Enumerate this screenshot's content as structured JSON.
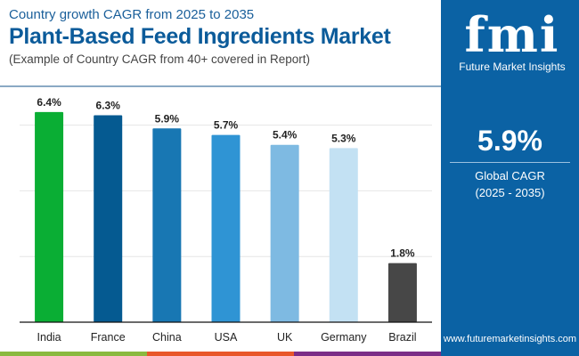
{
  "header": {
    "subtitle": "Country growth CAGR from 2025 to 2035",
    "title": "Plant-Based Feed Ingredients Market",
    "note": "(Example of Country CAGR from 40+ covered in Report)"
  },
  "sidebar": {
    "logo_text": "fmi",
    "brand": "Future Market Insights",
    "global_value": "5.9%",
    "global_label": "Global CAGR",
    "global_period": "(2025 - 2035)",
    "url": "www.futuremarketinsights.com",
    "color": "#0b62a4"
  },
  "chart_data": {
    "type": "bar",
    "title": "",
    "xlabel": "",
    "ylabel": "",
    "categories": [
      "India",
      "France",
      "China",
      "USA",
      "UK",
      "Germany",
      "Brazil"
    ],
    "values": [
      6.4,
      6.3,
      5.9,
      5.7,
      5.4,
      5.3,
      1.8
    ],
    "labels": [
      "6.4%",
      "6.3%",
      "5.9%",
      "5.7%",
      "5.4%",
      "5.3%",
      "1.8%"
    ],
    "colors": [
      "#0aae34",
      "#055a91",
      "#1877b3",
      "#2f94d4",
      "#7ebae2",
      "#c3e1f3",
      "#474747"
    ],
    "ylim": [
      0,
      8
    ],
    "grid": true,
    "gridlines": [
      2,
      4,
      6
    ],
    "legend": "none"
  },
  "stripes": [
    "#8ab93f",
    "#e8572a",
    "#7b2d87"
  ]
}
